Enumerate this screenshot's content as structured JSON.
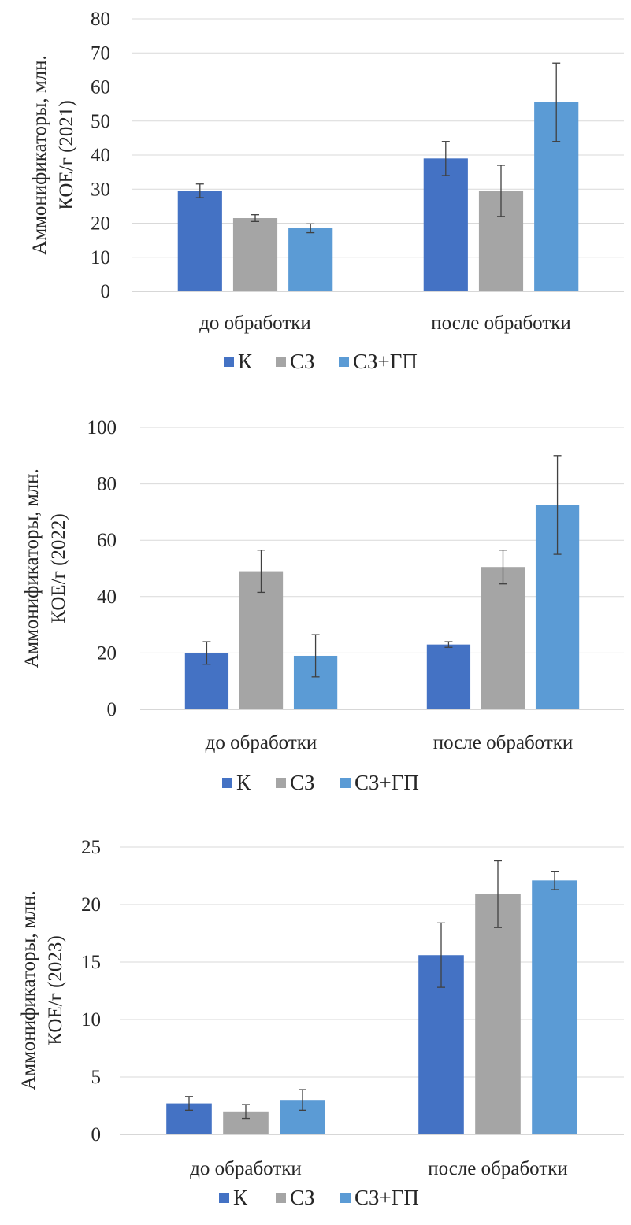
{
  "colors": {
    "К": "#4472C4",
    "СЗ": "#A5A5A5",
    "СЗ+ГП": "#5B9BD5",
    "grid": "#D9D9D9",
    "axis": "#BFBFBF",
    "error": "#404040"
  },
  "chart_data": [
    {
      "type": "bar",
      "categories": [
        "до обработки",
        "после обработки"
      ],
      "ylabel_line1": "Аммонификаторы, млн.",
      "ylabel_line2": "КОЕ/г (2021)",
      "ylim": [
        0,
        80
      ],
      "yticks": [
        0,
        10,
        20,
        30,
        40,
        50,
        60,
        70,
        80
      ],
      "grid": true,
      "legend": "bottom",
      "series": [
        {
          "name": "К",
          "values": [
            29.5,
            39
          ],
          "errors": [
            2,
            5
          ]
        },
        {
          "name": "СЗ",
          "values": [
            21.5,
            29.5
          ],
          "errors": [
            1,
            7.5
          ]
        },
        {
          "name": "СЗ+ГП",
          "values": [
            18.5,
            55.5
          ],
          "errors": [
            1.3,
            11.5
          ]
        }
      ]
    },
    {
      "type": "bar",
      "categories": [
        "до обработки",
        "после обработки"
      ],
      "ylabel_line1": "Аммонификаторы, млн.",
      "ylabel_line2": "КОЕ/г (2022)",
      "ylim": [
        0,
        100
      ],
      "yticks": [
        0,
        20,
        40,
        60,
        80,
        100
      ],
      "grid": true,
      "legend": "bottom",
      "series": [
        {
          "name": "К",
          "values": [
            20,
            23
          ],
          "errors": [
            4,
            1
          ]
        },
        {
          "name": "СЗ",
          "values": [
            49,
            50.5
          ],
          "errors": [
            7.5,
            6
          ]
        },
        {
          "name": "СЗ+ГП",
          "values": [
            19,
            72.5
          ],
          "errors": [
            7.5,
            17.5
          ]
        }
      ]
    },
    {
      "type": "bar",
      "categories": [
        "до обработки",
        "после обработки"
      ],
      "ylabel_line1": "Аммонификаторы, млн.",
      "ylabel_line2": "КОЕ/г (2023)",
      "ylim": [
        0,
        25
      ],
      "yticks": [
        0,
        5,
        10,
        15,
        20,
        25
      ],
      "grid": true,
      "legend": "bottom",
      "series": [
        {
          "name": "К",
          "values": [
            2.7,
            15.6
          ],
          "errors": [
            0.6,
            2.8
          ]
        },
        {
          "name": "СЗ",
          "values": [
            2.0,
            20.9
          ],
          "errors": [
            0.6,
            2.9
          ]
        },
        {
          "name": "СЗ+ГП",
          "values": [
            3.0,
            22.1
          ],
          "errors": [
            0.9,
            0.8
          ]
        }
      ]
    }
  ]
}
